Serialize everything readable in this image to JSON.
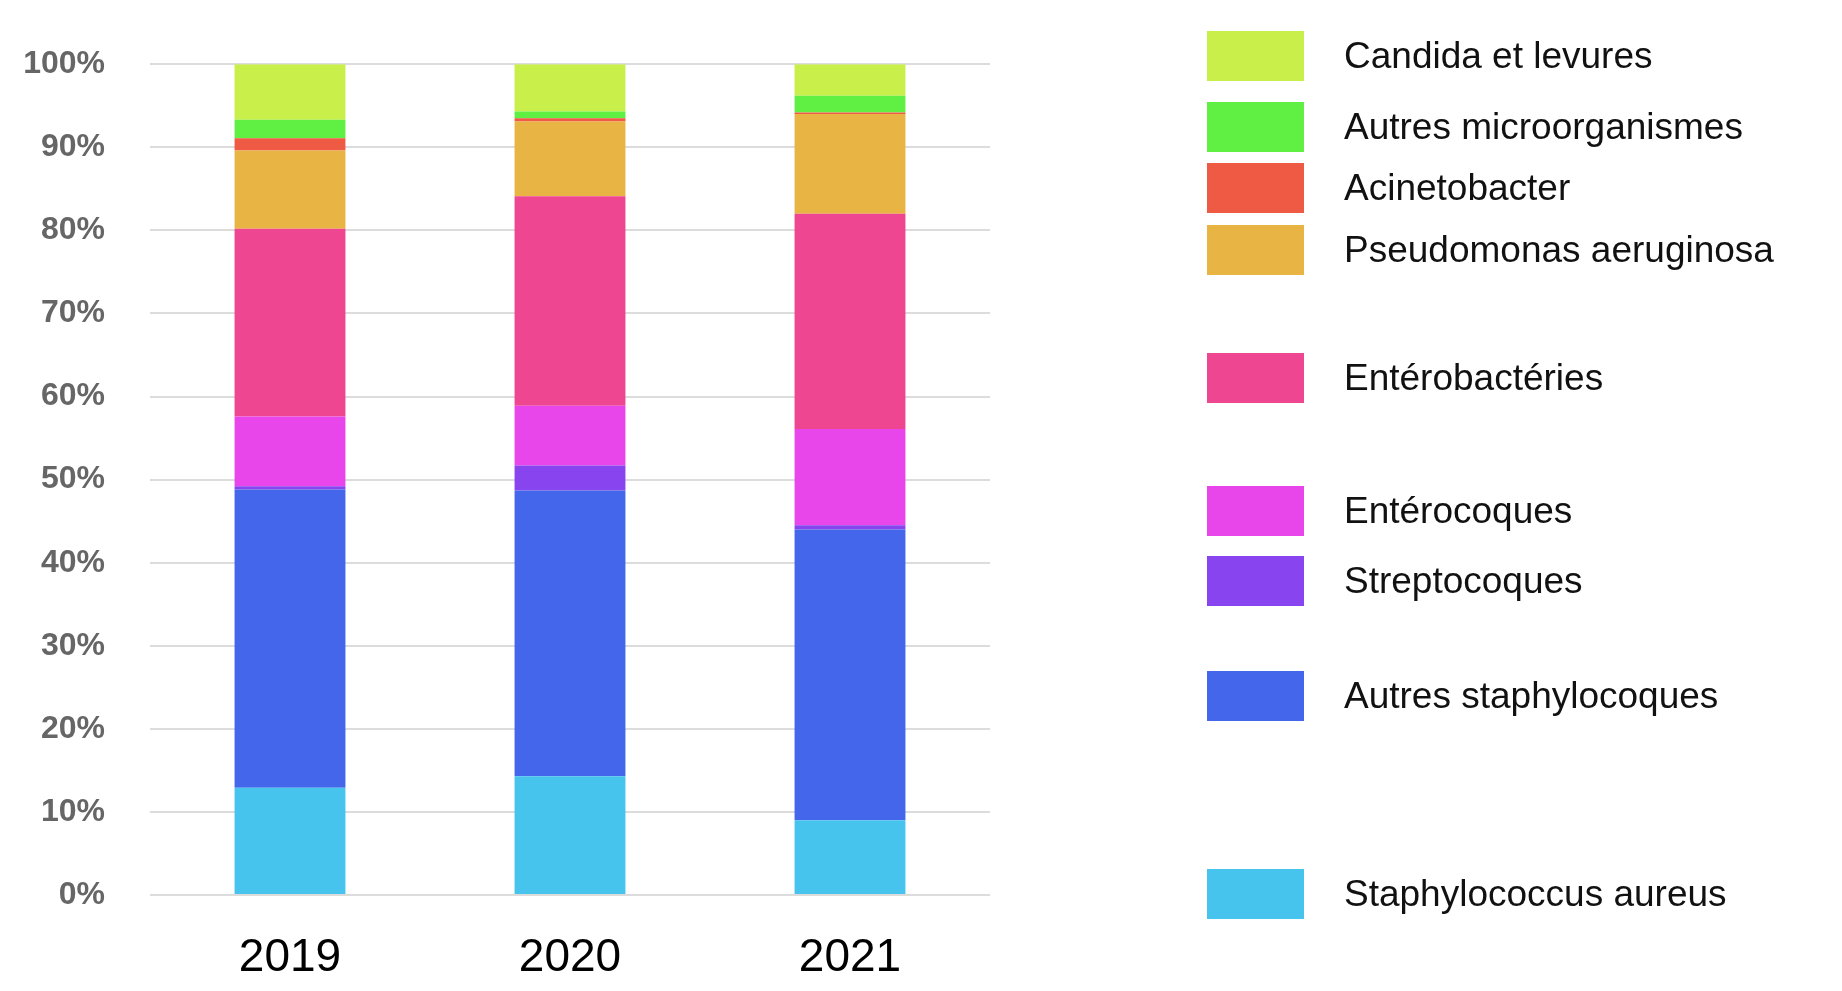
{
  "chart_data": {
    "type": "bar",
    "stacked": true,
    "categories": [
      "2019",
      "2020",
      "2021"
    ],
    "series": [
      {
        "name": "Staphylococcus aureus",
        "color": "#47c4ee",
        "values": [
          12.9,
          14.3,
          9.0
        ]
      },
      {
        "name": "Autres staphylocoques",
        "color": "#4466ea",
        "values": [
          35.9,
          34.4,
          35.0
        ]
      },
      {
        "name": "Streptocoques",
        "color": "#8844ee",
        "values": [
          0.4,
          3.0,
          0.5
        ]
      },
      {
        "name": "Entérocoques",
        "color": "#e846ea",
        "values": [
          8.4,
          7.2,
          11.6
        ]
      },
      {
        "name": "Entérobactéries",
        "color": "#ee4690",
        "values": [
          22.6,
          25.2,
          25.9
        ]
      },
      {
        "name": "Pseudomonas aeruginosa",
        "color": "#e8b444",
        "values": [
          9.4,
          9.0,
          12.0
        ]
      },
      {
        "name": "Acinetobacter",
        "color": "#ee5a44",
        "values": [
          1.5,
          0.4,
          0.2
        ]
      },
      {
        "name": "Autres microorganismes",
        "color": "#60f044",
        "values": [
          2.2,
          0.8,
          2.0
        ]
      },
      {
        "name": "Candida et levures",
        "color": "#c8ef4a",
        "values": [
          6.7,
          5.7,
          3.8
        ]
      }
    ],
    "ylim": [
      0,
      100
    ],
    "yticks": [
      {
        "value": 0,
        "label": "0%"
      },
      {
        "value": 10,
        "label": "10%"
      },
      {
        "value": 20,
        "label": "20%"
      },
      {
        "value": 30,
        "label": "30%"
      },
      {
        "value": 40,
        "label": "40%"
      },
      {
        "value": 50,
        "label": "50%"
      },
      {
        "value": 60,
        "label": "60%"
      },
      {
        "value": 70,
        "label": "70%"
      },
      {
        "value": 80,
        "label": "80%"
      },
      {
        "value": 90,
        "label": "90%"
      },
      {
        "value": 100,
        "label": "100%"
      }
    ],
    "grid": "y",
    "legend": "right"
  }
}
